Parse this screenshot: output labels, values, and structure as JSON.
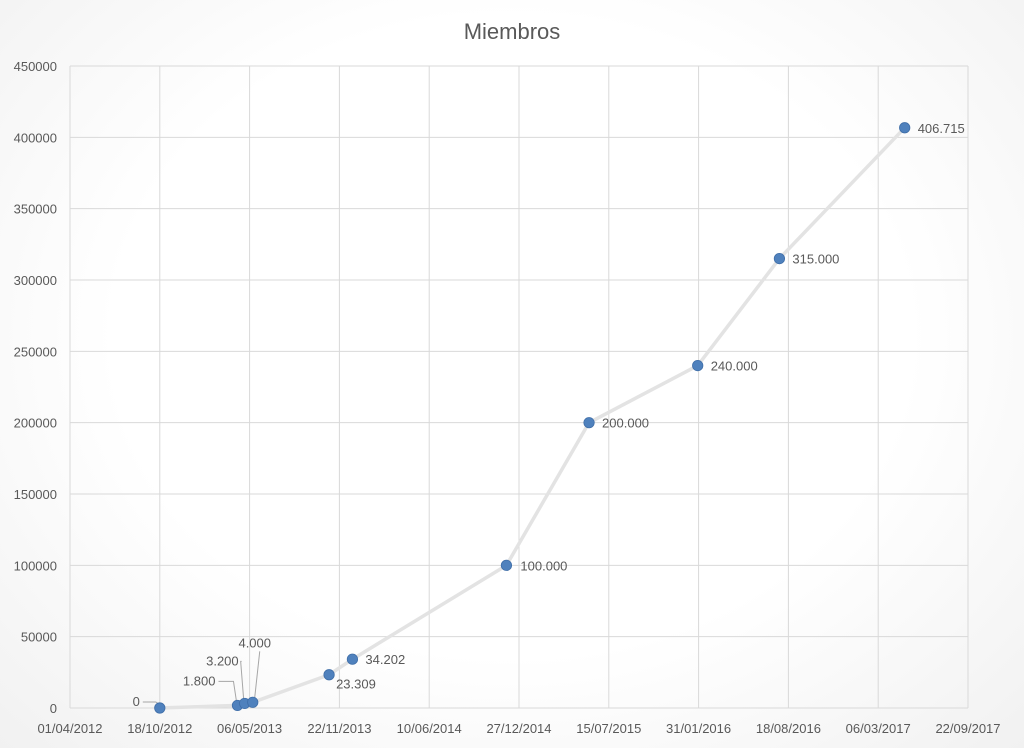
{
  "chart_data": {
    "type": "scatter",
    "title": "Miembros",
    "xlabel": "",
    "ylabel": "",
    "line": true,
    "grid": true,
    "legend": "none",
    "xlim": [
      "2012-04-01",
      "2017-09-22"
    ],
    "ylim": [
      0,
      450000
    ],
    "x_ticks": [
      "01/04/2012",
      "18/10/2012",
      "06/05/2013",
      "22/11/2013",
      "10/06/2014",
      "27/12/2014",
      "15/07/2015",
      "31/01/2016",
      "18/08/2016",
      "06/03/2017",
      "22/09/2017"
    ],
    "y_ticks": [
      "0",
      "50000",
      "100000",
      "150000",
      "200000",
      "250000",
      "300000",
      "350000",
      "400000",
      "450000"
    ],
    "series": [
      {
        "color": "#4f81bd",
        "points": [
          {
            "x": "2012-10-18",
            "y": 0,
            "label": "0"
          },
          {
            "x": "2013-04-09",
            "y": 1800,
            "label": "1.800"
          },
          {
            "x": "2013-04-25",
            "y": 3200,
            "label": "3.200"
          },
          {
            "x": "2013-05-13",
            "y": 4000,
            "label": "4.000"
          },
          {
            "x": "2013-10-30",
            "y": 23309,
            "label": "23.309"
          },
          {
            "x": "2013-12-21",
            "y": 34202,
            "label": "34.202"
          },
          {
            "x": "2014-11-29",
            "y": 100000,
            "label": "100.000"
          },
          {
            "x": "2015-06-01",
            "y": 200000,
            "label": "200.000"
          },
          {
            "x": "2016-01-29",
            "y": 240000,
            "label": "240.000"
          },
          {
            "x": "2016-07-29",
            "y": 315000,
            "label": "315.000"
          },
          {
            "x": "2017-05-04",
            "y": 406715,
            "label": "406.715"
          }
        ]
      }
    ]
  }
}
